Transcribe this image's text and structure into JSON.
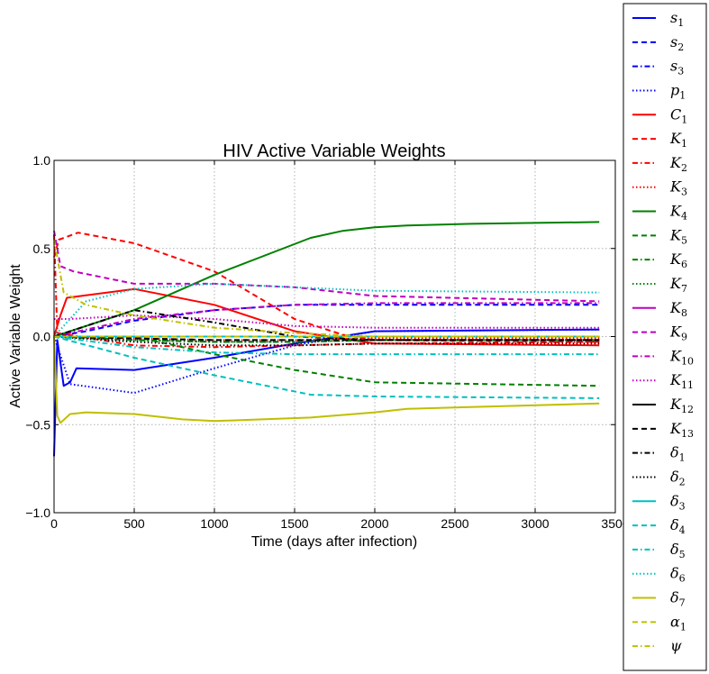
{
  "chart_data": {
    "type": "line",
    "title": "HIV Active Variable Weights",
    "xlabel": "Time (days after infection)",
    "ylabel": "Active Variable Weight",
    "xlim": [
      0,
      3500
    ],
    "ylim": [
      -1.0,
      1.0
    ],
    "x_ticks": [
      "0",
      "500",
      "1000",
      "1500",
      "2000",
      "2500",
      "3000",
      "3500"
    ],
    "y_ticks": [
      "1.0",
      "0.5",
      "0.0",
      "−0.5",
      "−1.0"
    ],
    "grid": true,
    "legend_position": "right-outside",
    "series": [
      {
        "name": "s",
        "sub": "1",
        "color": "#0000ff",
        "dash": "solid",
        "x": [
          0,
          20,
          60,
          100,
          140,
          500,
          1000,
          1500,
          2000,
          3400
        ],
        "y": [
          -0.68,
          -0.02,
          -0.28,
          -0.26,
          -0.18,
          -0.19,
          -0.12,
          -0.04,
          0.03,
          0.04
        ]
      },
      {
        "name": "s",
        "sub": "2",
        "color": "#0000ff",
        "dash": "dashed",
        "x": [
          0,
          200,
          500,
          1000,
          1500,
          2000,
          3400
        ],
        "y": [
          0.0,
          0.03,
          0.09,
          0.15,
          0.18,
          0.18,
          0.18
        ]
      },
      {
        "name": "s",
        "sub": "3",
        "color": "#0000ff",
        "dash": "dashdot",
        "x": [
          0,
          500,
          1000,
          1500,
          2000,
          3400
        ],
        "y": [
          0.0,
          -0.02,
          -0.03,
          -0.03,
          -0.02,
          -0.02
        ]
      },
      {
        "name": "p",
        "sub": "1",
        "color": "#0000ff",
        "dash": "dotted",
        "x": [
          0,
          100,
          500,
          1000,
          1500,
          2000,
          3400
        ],
        "y": [
          0.0,
          -0.27,
          -0.32,
          -0.18,
          -0.05,
          0.03,
          0.04
        ]
      },
      {
        "name": "C",
        "sub": "1",
        "color": "#ff0000",
        "dash": "solid",
        "x": [
          0,
          40,
          80,
          500,
          1000,
          1500,
          2000,
          3400
        ],
        "y": [
          0.0,
          0.12,
          0.22,
          0.27,
          0.18,
          0.03,
          -0.04,
          -0.05
        ]
      },
      {
        "name": "K",
        "sub": "1",
        "color": "#ff0000",
        "dash": "dashed",
        "x": [
          0,
          30,
          150,
          500,
          1000,
          1500,
          1800,
          2000,
          3400
        ],
        "y": [
          0.45,
          0.55,
          0.59,
          0.53,
          0.37,
          0.1,
          0.01,
          -0.02,
          -0.03
        ]
      },
      {
        "name": "K",
        "sub": "2",
        "color": "#ff0000",
        "dash": "dashdot",
        "x": [
          0,
          20,
          500,
          1000,
          1500,
          2000,
          3400
        ],
        "y": [
          0.58,
          0.02,
          -0.05,
          -0.06,
          -0.05,
          -0.04,
          -0.03
        ]
      },
      {
        "name": "K",
        "sub": "3",
        "color": "#ff0000",
        "dash": "dotted",
        "x": [
          0,
          500,
          1000,
          1500,
          2000,
          3400
        ],
        "y": [
          0.0,
          -0.01,
          -0.02,
          -0.02,
          -0.01,
          -0.01
        ]
      },
      {
        "name": "K",
        "sub": "4",
        "color": "#008000",
        "dash": "solid",
        "x": [
          0,
          500,
          1000,
          1600,
          1800,
          2000,
          2200,
          2600,
          3400
        ],
        "y": [
          0.0,
          0.15,
          0.35,
          0.56,
          0.6,
          0.62,
          0.63,
          0.64,
          0.65
        ]
      },
      {
        "name": "K",
        "sub": "5",
        "color": "#008000",
        "dash": "dashed",
        "x": [
          0,
          500,
          1000,
          1500,
          2000,
          3400
        ],
        "y": [
          0.0,
          0.0,
          -0.1,
          -0.19,
          -0.26,
          -0.28
        ]
      },
      {
        "name": "K",
        "sub": "6",
        "color": "#008000",
        "dash": "dashdot",
        "x": [
          0,
          500,
          1000,
          1500,
          2000,
          3400
        ],
        "y": [
          0.0,
          -0.02,
          -0.03,
          -0.03,
          -0.02,
          -0.02
        ]
      },
      {
        "name": "K",
        "sub": "7",
        "color": "#008000",
        "dash": "dotted",
        "x": [
          0,
          500,
          1000,
          1500,
          2000,
          3400
        ],
        "y": [
          0.0,
          -0.02,
          -0.03,
          -0.03,
          -0.02,
          -0.02
        ]
      },
      {
        "name": "K",
        "sub": "8",
        "color": "#bf00bf",
        "dash": "solid",
        "x": [
          0,
          3400
        ],
        "y": [
          0.0,
          0.0
        ]
      },
      {
        "name": "K",
        "sub": "9",
        "color": "#bf00bf",
        "dash": "dashed",
        "x": [
          0,
          40,
          120,
          500,
          1000,
          1500,
          2000,
          3400
        ],
        "y": [
          0.6,
          0.4,
          0.37,
          0.3,
          0.3,
          0.28,
          0.23,
          0.2
        ]
      },
      {
        "name": "K",
        "sub": "10",
        "color": "#bf00bf",
        "dash": "dashdot",
        "x": [
          0,
          500,
          1000,
          1500,
          2000,
          3400
        ],
        "y": [
          0.0,
          0.1,
          0.15,
          0.18,
          0.19,
          0.19
        ]
      },
      {
        "name": "K",
        "sub": "11",
        "color": "#bf00bf",
        "dash": "dotted",
        "x": [
          0,
          100,
          500,
          1000,
          1500,
          2000,
          3400
        ],
        "y": [
          0.1,
          0.1,
          0.12,
          0.1,
          0.06,
          0.05,
          0.05
        ]
      },
      {
        "name": "K",
        "sub": "12",
        "color": "#000000",
        "dash": "solid",
        "x": [
          0,
          3400
        ],
        "y": [
          0.0,
          0.0
        ]
      },
      {
        "name": "K",
        "sub": "13",
        "color": "#000000",
        "dash": "dashed",
        "x": [
          0,
          500,
          1000,
          1500,
          2000,
          3400
        ],
        "y": [
          0.0,
          -0.01,
          -0.02,
          -0.02,
          -0.02,
          -0.02
        ]
      },
      {
        "name": "δ",
        "sub": "1",
        "color": "#000000",
        "dash": "dashdot",
        "x": [
          0,
          500,
          1000,
          1500,
          2000,
          3400
        ],
        "y": [
          0.0,
          0.15,
          0.08,
          0.0,
          -0.02,
          -0.02
        ]
      },
      {
        "name": "δ",
        "sub": "2",
        "color": "#000000",
        "dash": "dotted",
        "x": [
          0,
          500,
          1000,
          1500,
          2000,
          3400
        ],
        "y": [
          0.0,
          -0.03,
          -0.05,
          -0.05,
          -0.04,
          -0.04
        ]
      },
      {
        "name": "δ",
        "sub": "3",
        "color": "#00bfbf",
        "dash": "solid",
        "x": [
          0,
          3400
        ],
        "y": [
          0.0,
          0.0
        ]
      },
      {
        "name": "δ",
        "sub": "4",
        "color": "#00bfbf",
        "dash": "dashed",
        "x": [
          0,
          500,
          1000,
          1600,
          2000,
          3400
        ],
        "y": [
          0.0,
          -0.12,
          -0.22,
          -0.33,
          -0.34,
          -0.35
        ]
      },
      {
        "name": "δ",
        "sub": "5",
        "color": "#00bfbf",
        "dash": "dashdot",
        "x": [
          0,
          500,
          1000,
          1500,
          2000,
          3400
        ],
        "y": [
          0.0,
          -0.06,
          -0.09,
          -0.1,
          -0.1,
          -0.1
        ]
      },
      {
        "name": "δ",
        "sub": "6",
        "color": "#00bfbf",
        "dash": "dotted",
        "x": [
          0,
          200,
          500,
          1000,
          1500,
          2000,
          3400
        ],
        "y": [
          0.0,
          0.2,
          0.27,
          0.3,
          0.28,
          0.26,
          0.25
        ]
      },
      {
        "name": "δ",
        "sub": "7",
        "color": "#bfbf00",
        "dash": "solid",
        "x": [
          0,
          20,
          40,
          100,
          200,
          500,
          800,
          1000,
          1600,
          2000,
          2200,
          3400
        ],
        "y": [
          0.0,
          -0.45,
          -0.49,
          -0.44,
          -0.43,
          -0.44,
          -0.47,
          -0.48,
          -0.46,
          -0.43,
          -0.41,
          -0.38
        ]
      },
      {
        "name": "α",
        "sub": "1",
        "color": "#bfbf00",
        "dash": "dashed",
        "x": [
          0,
          500,
          1000,
          1500,
          2000,
          3400
        ],
        "y": [
          0.0,
          0.0,
          0.0,
          0.0,
          0.0,
          0.0
        ]
      },
      {
        "name": "ψ",
        "sub": "",
        "color": "#bfbf00",
        "dash": "dashdot",
        "x": [
          0,
          60,
          200,
          500,
          1000,
          1500,
          2000,
          3400
        ],
        "y": [
          0.55,
          0.25,
          0.18,
          0.12,
          0.05,
          0.02,
          0.0,
          0.0
        ]
      }
    ]
  }
}
